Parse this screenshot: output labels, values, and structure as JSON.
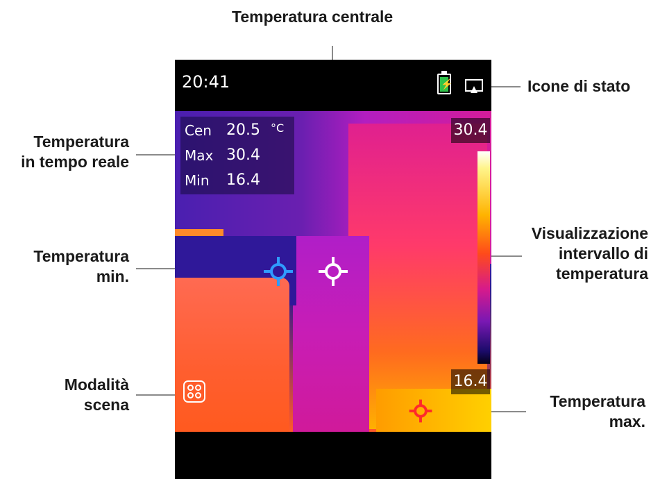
{
  "labels": {
    "center_temp": "Temperatura centrale",
    "status_icons": "Icone di stato",
    "realtime_temp": [
      "Temperatura",
      "in tempo reale"
    ],
    "min_temp": [
      "Temperatura",
      "min."
    ],
    "range_display": [
      "Visualizzazione",
      "intervallo di",
      "temperatura"
    ],
    "scene_mode": [
      "Modalità",
      "scena"
    ],
    "max_temp": [
      "Temperatura",
      "max."
    ]
  },
  "device": {
    "time": "20:41",
    "readout": [
      {
        "label": "Cen",
        "value": "20.5",
        "unit": "°C"
      },
      {
        "label": "Max",
        "value": "30.4"
      },
      {
        "label": "Min",
        "value": "16.4"
      }
    ],
    "scale_max": "30.4",
    "scale_min": "16.4"
  },
  "colors": {
    "max_marker": "#ff2a2a",
    "min_marker": "#2f9bff",
    "center_marker": "#ffffff",
    "battery": "#2fc24a"
  },
  "icons": [
    "battery-icon",
    "display-icon",
    "scene-mode-icon",
    "crosshair-icon"
  ]
}
